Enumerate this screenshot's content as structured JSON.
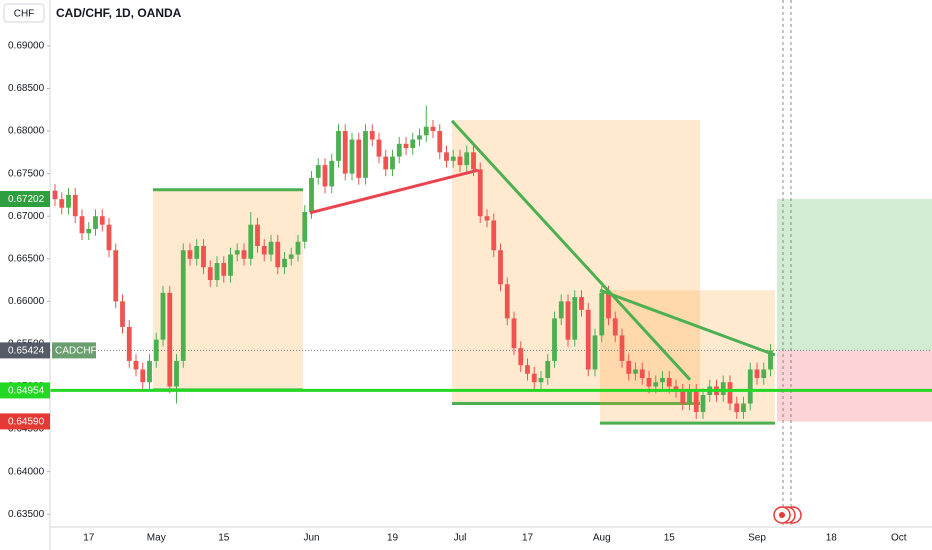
{
  "chart_data": {
    "type": "candlestick",
    "title": "CAD/CHF, 1D, OANDA",
    "currency": "CHF",
    "symbol": "CADCHF",
    "up_color": "#4caf50",
    "down_color": "#ef5350",
    "grid": false,
    "ylim": [
      0.6335,
      0.6921
    ],
    "yticks": [
      {
        "value": 0.635,
        "label": "0.63500"
      },
      {
        "value": 0.64,
        "label": "0.64000"
      },
      {
        "value": 0.645,
        "label": "0.64500"
      },
      {
        "value": 0.65,
        "label": "0.65000"
      },
      {
        "value": 0.655,
        "label": "0.65500"
      },
      {
        "value": 0.66,
        "label": "0.66000"
      },
      {
        "value": 0.665,
        "label": "0.66500"
      },
      {
        "value": 0.67,
        "label": "0.67000"
      },
      {
        "value": 0.675,
        "label": "0.67500"
      },
      {
        "value": 0.68,
        "label": "0.68000"
      },
      {
        "value": 0.685,
        "label": "0.68500"
      },
      {
        "value": 0.69,
        "label": "0.69000"
      }
    ],
    "categories": [
      null,
      null,
      null,
      null,
      null,
      "17",
      null,
      null,
      null,
      null,
      null,
      null,
      null,
      null,
      null,
      "May",
      null,
      null,
      null,
      null,
      null,
      null,
      null,
      null,
      null,
      "15",
      null,
      null,
      null,
      null,
      null,
      null,
      null,
      null,
      null,
      null,
      null,
      null,
      "Jun",
      null,
      null,
      null,
      null,
      null,
      null,
      null,
      null,
      null,
      null,
      null,
      "19",
      null,
      null,
      null,
      null,
      null,
      null,
      null,
      null,
      null,
      "Jul",
      null,
      null,
      null,
      null,
      null,
      null,
      null,
      null,
      null,
      "17",
      null,
      null,
      null,
      null,
      null,
      null,
      null,
      null,
      null,
      null,
      "Aug",
      null,
      null,
      null,
      null,
      null,
      null,
      null,
      null,
      null,
      "15",
      null,
      null,
      null,
      null,
      null,
      null,
      null,
      null,
      null,
      null,
      null,
      null,
      "Sep",
      null,
      null,
      null,
      null,
      null,
      null,
      null,
      null,
      null,
      null,
      "18",
      null,
      null,
      null,
      null,
      null,
      null,
      null,
      null,
      null,
      "Oct"
    ],
    "open": [
      0.673,
      0.672,
      0.671,
      0.6725,
      0.67,
      0.668,
      0.6685,
      0.67,
      0.669,
      0.666,
      0.66,
      0.657,
      0.653,
      0.652,
      0.6505,
      0.653,
      0.6555,
      0.661,
      0.65,
      0.653,
      0.666,
      0.665,
      0.6665,
      0.664,
      0.6625,
      0.6645,
      0.663,
      0.6655,
      0.666,
      0.665,
      0.669,
      0.6665,
      0.6655,
      0.667,
      0.664,
      0.665,
      0.6655,
      0.667,
      0.6705,
      0.6745,
      0.676,
      0.6735,
      0.6765,
      0.68,
      0.675,
      0.679,
      0.6745,
      0.68,
      0.679,
      0.677,
      0.6755,
      0.677,
      0.6785,
      0.678,
      0.679,
      0.6795,
      0.6805,
      0.68,
      0.6775,
      0.6765,
      0.677,
      0.676,
      0.6775,
      0.6755,
      0.67,
      0.6695,
      0.666,
      0.662,
      0.658,
      0.6545,
      0.6525,
      0.6515,
      0.6505,
      0.651,
      0.653,
      0.658,
      0.66,
      0.6555,
      0.6605,
      0.659,
      0.652,
      0.656,
      0.661,
      0.658,
      0.656,
      0.653,
      0.6515,
      0.652,
      0.651,
      0.65,
      0.6505,
      0.651,
      0.65,
      0.6495,
      0.648,
      0.6495,
      0.647,
      0.649,
      0.65,
      0.649,
      0.6505,
      0.648,
      0.647,
      0.648,
      0.652,
      0.651,
      0.652,
      null,
      null,
      null,
      null,
      null,
      null,
      null,
      null,
      null,
      null,
      null,
      null,
      null,
      null,
      null,
      null,
      null,
      null,
      null
    ],
    "high": [
      0.6738,
      0.6728,
      0.6733,
      0.6733,
      0.6708,
      0.6693,
      0.6708,
      0.6708,
      0.6698,
      0.6668,
      0.6608,
      0.6578,
      0.6538,
      0.6528,
      0.6538,
      0.6563,
      0.6618,
      0.6618,
      0.6538,
      0.6668,
      0.6668,
      0.6673,
      0.6673,
      0.6648,
      0.6653,
      0.6653,
      0.6663,
      0.6668,
      0.6668,
      0.6705,
      0.6698,
      0.6673,
      0.6678,
      0.6678,
      0.6658,
      0.6663,
      0.6678,
      0.6713,
      0.6753,
      0.6768,
      0.6768,
      0.6773,
      0.6808,
      0.6808,
      0.6798,
      0.6798,
      0.6808,
      0.6808,
      0.6798,
      0.6778,
      0.6778,
      0.6793,
      0.6793,
      0.6798,
      0.6803,
      0.683,
      0.6813,
      0.6808,
      0.6783,
      0.6778,
      0.6778,
      0.6783,
      0.6783,
      0.6763,
      0.6708,
      0.6703,
      0.6668,
      0.6628,
      0.6588,
      0.6553,
      0.6533,
      0.6523,
      0.6518,
      0.6538,
      0.6588,
      0.6608,
      0.6608,
      0.6613,
      0.6613,
      0.6598,
      0.6568,
      0.6618,
      0.6618,
      0.6588,
      0.6568,
      0.6538,
      0.6528,
      0.6528,
      0.6518,
      0.6513,
      0.6518,
      0.6518,
      0.6508,
      0.6503,
      0.6503,
      0.6503,
      0.6498,
      0.6508,
      0.6508,
      0.6513,
      0.6513,
      0.6488,
      0.6488,
      0.6528,
      0.6528,
      0.6528,
      0.655,
      null,
      null,
      null,
      null,
      null,
      null,
      null,
      null,
      null,
      null,
      null,
      null,
      null,
      null,
      null,
      null,
      null,
      null,
      null
    ],
    "low": [
      0.6712,
      0.6702,
      0.6702,
      0.6692,
      0.6672,
      0.6672,
      0.6677,
      0.6682,
      0.6652,
      0.6592,
      0.6562,
      0.6522,
      0.6512,
      0.6497,
      0.6497,
      0.6522,
      0.6547,
      0.6492,
      0.648,
      0.6522,
      0.6642,
      0.6642,
      0.6632,
      0.6617,
      0.6617,
      0.6622,
      0.6622,
      0.6647,
      0.6642,
      0.6642,
      0.6657,
      0.6647,
      0.6647,
      0.6632,
      0.6632,
      0.6642,
      0.6647,
      0.6662,
      0.6697,
      0.6737,
      0.6727,
      0.6727,
      0.6757,
      0.6742,
      0.6742,
      0.6737,
      0.6737,
      0.6782,
      0.6762,
      0.6747,
      0.6747,
      0.6762,
      0.6772,
      0.6772,
      0.6782,
      0.6787,
      0.6792,
      0.6767,
      0.6757,
      0.6757,
      0.6752,
      0.6752,
      0.6747,
      0.6692,
      0.6687,
      0.6652,
      0.6612,
      0.6572,
      0.6537,
      0.6517,
      0.6507,
      0.6497,
      0.6497,
      0.6502,
      0.6522,
      0.6572,
      0.6547,
      0.6547,
      0.6582,
      0.6512,
      0.6512,
      0.6552,
      0.6572,
      0.6552,
      0.6522,
      0.6507,
      0.6507,
      0.6502,
      0.6492,
      0.6492,
      0.6497,
      0.6492,
      0.6487,
      0.6472,
      0.6472,
      0.6462,
      0.6462,
      0.6482,
      0.6482,
      0.6482,
      0.6472,
      0.6462,
      0.6462,
      0.6472,
      0.6502,
      0.6502,
      0.6512,
      null,
      null,
      null,
      null,
      null,
      null,
      null,
      null,
      null,
      null,
      null,
      null,
      null,
      null,
      null,
      null,
      null,
      null,
      null
    ],
    "close": [
      0.672,
      0.671,
      0.6725,
      0.67,
      0.668,
      0.6685,
      0.67,
      0.669,
      0.666,
      0.66,
      0.657,
      0.653,
      0.652,
      0.6505,
      0.653,
      0.6555,
      0.661,
      0.65,
      0.653,
      0.666,
      0.665,
      0.6665,
      0.664,
      0.6625,
      0.6645,
      0.663,
      0.6655,
      0.666,
      0.665,
      0.669,
      0.6665,
      0.6655,
      0.667,
      0.664,
      0.665,
      0.6655,
      0.667,
      0.6705,
      0.6745,
      0.676,
      0.6735,
      0.6765,
      0.68,
      0.675,
      0.679,
      0.6745,
      0.68,
      0.679,
      0.677,
      0.6755,
      0.677,
      0.6785,
      0.678,
      0.679,
      0.6795,
      0.6805,
      0.68,
      0.6775,
      0.6765,
      0.677,
      0.676,
      0.6775,
      0.6755,
      0.67,
      0.6695,
      0.666,
      0.662,
      0.658,
      0.6545,
      0.6525,
      0.6515,
      0.6505,
      0.651,
      0.653,
      0.658,
      0.66,
      0.6555,
      0.6605,
      0.659,
      0.652,
      0.656,
      0.661,
      0.658,
      0.656,
      0.653,
      0.6515,
      0.652,
      0.651,
      0.65,
      0.6505,
      0.651,
      0.65,
      0.6495,
      0.648,
      0.6495,
      0.647,
      0.649,
      0.65,
      0.649,
      0.6505,
      0.648,
      0.647,
      0.648,
      0.652,
      0.651,
      0.652,
      0.65424,
      null,
      null,
      null,
      null,
      null,
      null,
      null,
      null,
      null,
      null,
      null,
      null,
      null,
      null,
      null,
      null,
      null,
      null,
      null
    ],
    "levels": {
      "target": {
        "value": 0.67202,
        "label": "0.67202",
        "color": "#2e9e3e"
      },
      "entry": {
        "value": 0.65424,
        "label": "0.65424",
        "color": "#555b66"
      },
      "support": {
        "value": 0.64954,
        "label": "0.64954",
        "color": "#22d822"
      },
      "stop": {
        "value": 0.6459,
        "label": "0.64590",
        "color": "#e53935"
      }
    },
    "zones": [
      {
        "top": 0.6731,
        "bottom": 0.6496
      },
      {
        "top": 0.6813,
        "bottom": 0.648
      },
      {
        "top": 0.6613,
        "bottom": 0.6457
      }
    ],
    "trendlines": [
      {
        "from": 0.6704,
        "to": 0.6754,
        "color": "#e8434f"
      },
      {
        "from": 0.6812,
        "to": 0.6508,
        "color": "#4caf50"
      },
      {
        "from": 0.6613,
        "to": 0.6537,
        "color": "#4caf50"
      }
    ]
  }
}
